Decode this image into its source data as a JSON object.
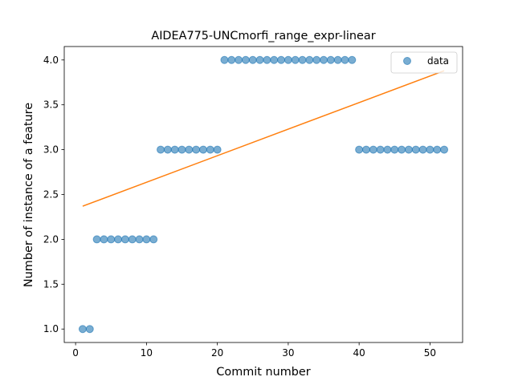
{
  "chart_data": {
    "type": "scatter",
    "title": "AIDEA775-UNCmorfi_range_expr-linear",
    "xlabel": "Commit number",
    "ylabel": "Number of instance of a feature",
    "xlim": [
      -1.6,
      54.6
    ],
    "ylim": [
      0.85,
      4.15
    ],
    "xticks": [
      0,
      10,
      20,
      30,
      40,
      50
    ],
    "yticks": [
      1.0,
      1.5,
      2.0,
      2.5,
      3.0,
      3.5,
      4.0
    ],
    "xtick_labels": [
      "0",
      "10",
      "20",
      "30",
      "40",
      "50"
    ],
    "ytick_labels": [
      "1.0",
      "1.5",
      "2.0",
      "2.5",
      "3.0",
      "3.5",
      "4.0"
    ],
    "legend": {
      "position": "top-right",
      "entries": [
        "data"
      ]
    },
    "grid": false,
    "colors": {
      "points": "#1f77b4",
      "fit": "#ff7f0e"
    },
    "series": [
      {
        "name": "data",
        "kind": "scatter",
        "x": [
          1,
          2,
          3,
          4,
          5,
          6,
          7,
          8,
          9,
          10,
          11,
          12,
          13,
          14,
          15,
          16,
          17,
          18,
          19,
          20,
          21,
          22,
          23,
          24,
          25,
          26,
          27,
          28,
          29,
          30,
          31,
          32,
          33,
          34,
          35,
          36,
          37,
          38,
          39,
          40,
          41,
          42,
          43,
          44,
          45,
          46,
          47,
          48,
          49,
          50,
          51,
          52
        ],
        "y": [
          1,
          1,
          2,
          2,
          2,
          2,
          2,
          2,
          2,
          2,
          2,
          3,
          3,
          3,
          3,
          3,
          3,
          3,
          3,
          3,
          4,
          4,
          4,
          4,
          4,
          4,
          4,
          4,
          4,
          4,
          4,
          4,
          4,
          4,
          4,
          4,
          4,
          4,
          4,
          3,
          3,
          3,
          3,
          3,
          3,
          3,
          3,
          3,
          3,
          3,
          3,
          3
        ]
      },
      {
        "kind": "line",
        "x": [
          1,
          52
        ],
        "y": [
          2.37,
          3.88
        ]
      }
    ]
  }
}
